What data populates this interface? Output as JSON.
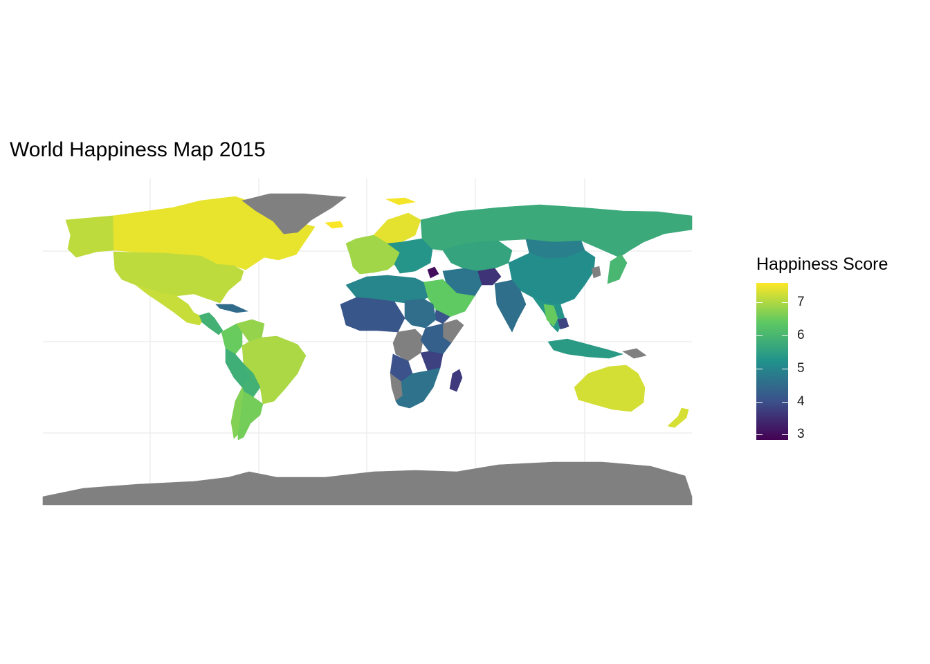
{
  "title": "World Happiness Map 2015",
  "legend": {
    "title": "Happiness Score",
    "ticks": [
      "7",
      "6",
      "5",
      "4",
      "3"
    ],
    "tick_values": [
      7,
      6,
      5,
      4,
      3
    ],
    "range": [
      2.84,
      7.59
    ],
    "palette": [
      "#440154",
      "#3b528b",
      "#21918c",
      "#5ec962",
      "#fde725"
    ]
  },
  "colors": {
    "no_data": "#808080",
    "grid": "#ebebeb",
    "background": "#ffffff"
  },
  "chart_data": {
    "type": "heatmap",
    "title": "World Happiness Map 2015",
    "legend_title": "Happiness Score",
    "color_scale": "viridis",
    "scale_range": [
      2.84,
      7.59
    ],
    "legend_ticks": [
      3,
      4,
      5,
      6,
      7
    ],
    "grid": true,
    "legend_position": "right",
    "regions": [
      {
        "name": "Canada",
        "value": 7.43
      },
      {
        "name": "Alaska (United States)",
        "value": 7.12
      },
      {
        "name": "United States",
        "value": 7.12
      },
      {
        "name": "Mexico",
        "value": 7.19
      },
      {
        "name": "Central America",
        "value": 5.9
      },
      {
        "name": "Cuba / Caribbean",
        "value": 4.5
      },
      {
        "name": "Colombia",
        "value": 6.48
      },
      {
        "name": "Venezuela",
        "value": 6.81
      },
      {
        "name": "Brazil",
        "value": 6.98
      },
      {
        "name": "Peru",
        "value": 5.82
      },
      {
        "name": "Bolivia",
        "value": 5.89
      },
      {
        "name": "Chile",
        "value": 6.67
      },
      {
        "name": "Argentina",
        "value": 6.57
      },
      {
        "name": "Greenland",
        "value": null
      },
      {
        "name": "Iceland",
        "value": 7.56
      },
      {
        "name": "Svalbard",
        "value": 7.52
      },
      {
        "name": "Scandinavia",
        "value": 7.4
      },
      {
        "name": "Western Europe",
        "value": 6.9
      },
      {
        "name": "Eastern Europe",
        "value": 5.3
      },
      {
        "name": "Russia",
        "value": 5.72
      },
      {
        "name": "Kazakhstan / Central Asia",
        "value": 5.6
      },
      {
        "name": "Mongolia",
        "value": 4.87
      },
      {
        "name": "China",
        "value": 5.14
      },
      {
        "name": "North Korea",
        "value": null
      },
      {
        "name": "Japan",
        "value": 5.99
      },
      {
        "name": "India",
        "value": 4.57
      },
      {
        "name": "Afghanistan",
        "value": 3.58
      },
      {
        "name": "Iran",
        "value": 4.69
      },
      {
        "name": "Saudi Arabia / Arabian Peninsula",
        "value": 6.41
      },
      {
        "name": "Yemen",
        "value": 4.08
      },
      {
        "name": "Syria",
        "value": 3.01
      },
      {
        "name": "Southeast Asia",
        "value": 5.3
      },
      {
        "name": "Thailand",
        "value": 6.46
      },
      {
        "name": "Cambodia",
        "value": 3.82
      },
      {
        "name": "Indonesia",
        "value": 5.4
      },
      {
        "name": "Papua New Guinea",
        "value": null
      },
      {
        "name": "Australia",
        "value": 7.28
      },
      {
        "name": "New Zealand",
        "value": 7.29
      },
      {
        "name": "North Africa",
        "value": 5.0
      },
      {
        "name": "West Africa",
        "value": 4.1
      },
      {
        "name": "Sudan",
        "value": 4.55
      },
      {
        "name": "Somalia",
        "value": null
      },
      {
        "name": "DR Congo",
        "value": null
      },
      {
        "name": "East Africa",
        "value": 4.3
      },
      {
        "name": "Tanzania",
        "value": 3.78
      },
      {
        "name": "Angola",
        "value": 4.03
      },
      {
        "name": "Namibia",
        "value": null
      },
      {
        "name": "Southern Africa",
        "value": 4.64
      },
      {
        "name": "Madagascar",
        "value": 3.68
      },
      {
        "name": "Antarctica",
        "value": null
      }
    ]
  }
}
